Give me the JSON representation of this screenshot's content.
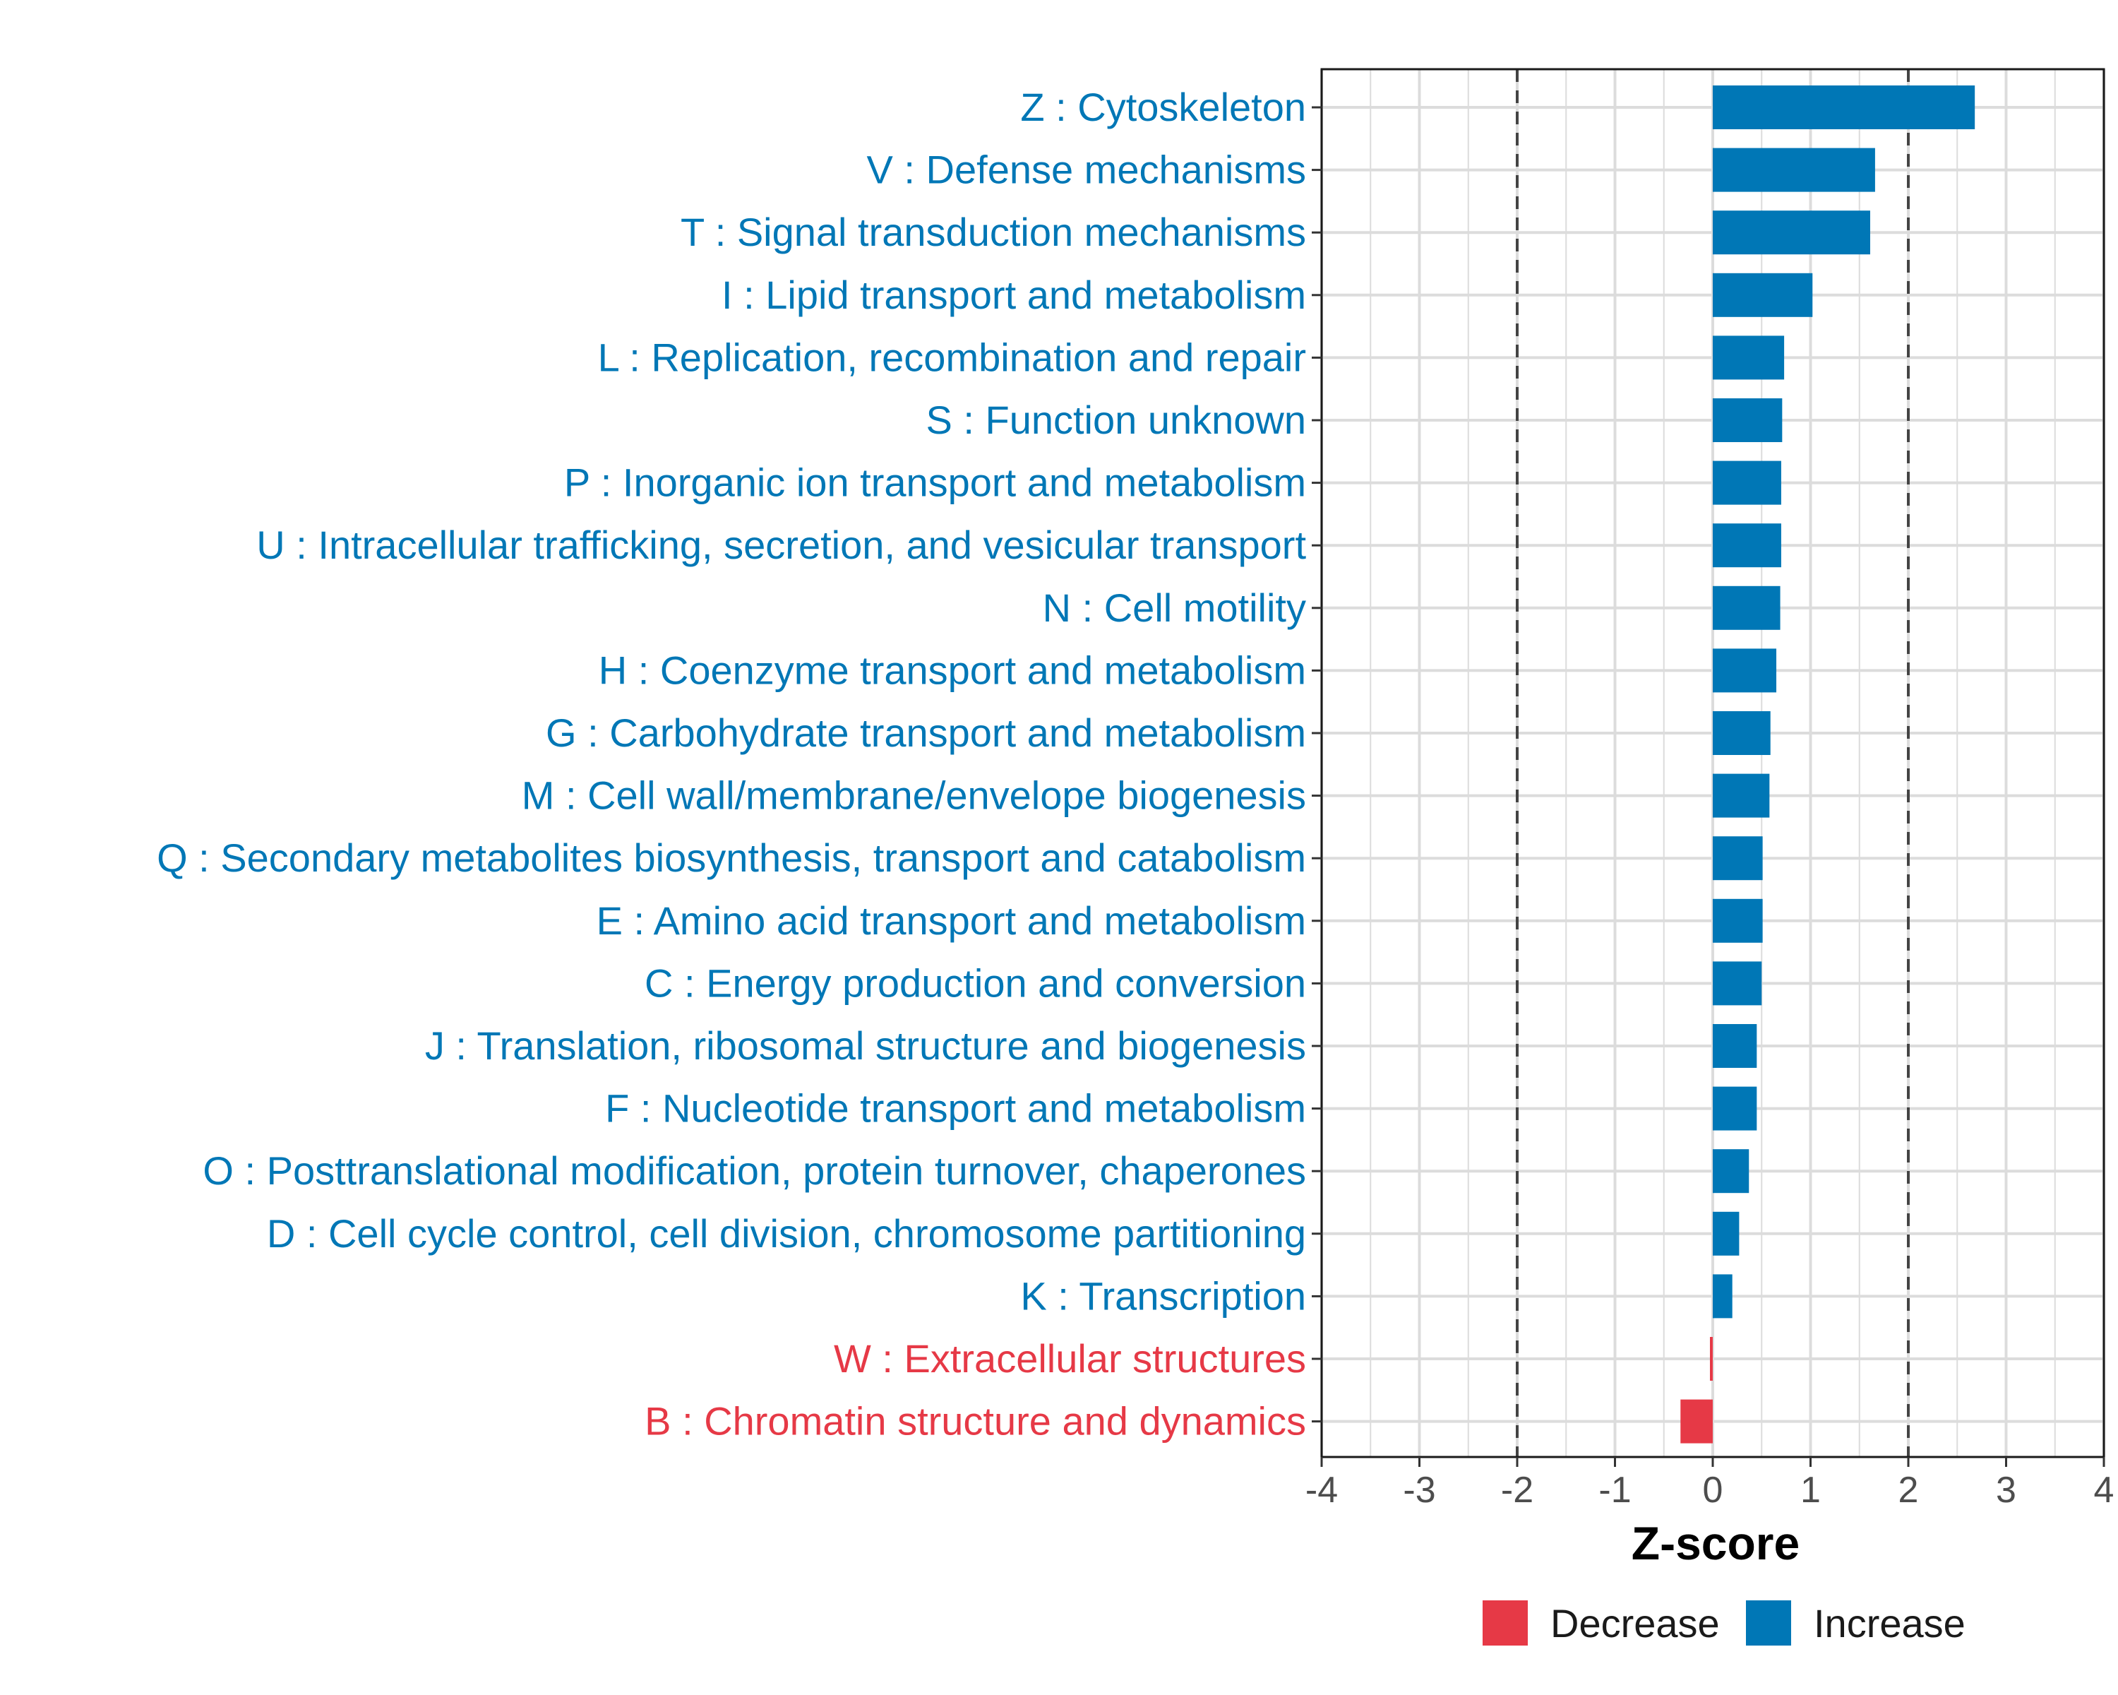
{
  "chart_data": {
    "type": "bar",
    "orientation": "horizontal",
    "title": "",
    "xlabel": "Z-score",
    "ylabel": "",
    "xlim": [
      -4,
      4
    ],
    "xticks": [
      -4,
      -3,
      -2,
      -1,
      0,
      1,
      2,
      3,
      4
    ],
    "xtick_labels": [
      "-4",
      "-3",
      "-2",
      "-1",
      "0",
      "1",
      "2",
      "3",
      "4"
    ],
    "reference_lines": [
      -2,
      2
    ],
    "grid": true,
    "legend_position": "bottom",
    "categories": [
      "Z : Cytoskeleton",
      "V : Defense mechanisms",
      "T : Signal transduction mechanisms",
      "I : Lipid transport and metabolism",
      "L : Replication, recombination and repair",
      "S : Function unknown",
      "P : Inorganic ion transport and metabolism",
      "U : Intracellular trafficking, secretion, and vesicular transport",
      "N : Cell motility",
      "H : Coenzyme transport and metabolism",
      "G : Carbohydrate transport and metabolism",
      "M : Cell wall/membrane/envelope biogenesis",
      "Q : Secondary metabolites biosynthesis, transport and catabolism",
      "E : Amino acid transport and metabolism",
      "C : Energy production and conversion",
      "J : Translation, ribosomal structure and biogenesis",
      "F : Nucleotide transport and metabolism",
      "O : Posttranslational modification, protein turnover, chaperones",
      "D : Cell cycle control, cell division, chromosome partitioning",
      "K : Transcription",
      "W : Extracellular structures",
      "B : Chromatin structure and dynamics"
    ],
    "values": [
      2.68,
      1.66,
      1.61,
      1.02,
      0.73,
      0.71,
      0.7,
      0.7,
      0.69,
      0.65,
      0.59,
      0.58,
      0.51,
      0.51,
      0.5,
      0.45,
      0.45,
      0.37,
      0.27,
      0.2,
      -0.02,
      -0.33
    ],
    "groups": [
      "Increase",
      "Increase",
      "Increase",
      "Increase",
      "Increase",
      "Increase",
      "Increase",
      "Increase",
      "Increase",
      "Increase",
      "Increase",
      "Increase",
      "Increase",
      "Increase",
      "Increase",
      "Increase",
      "Increase",
      "Increase",
      "Increase",
      "Increase",
      "Decrease",
      "Decrease"
    ],
    "legend": [
      {
        "name": "Decrease",
        "color": "#e63946"
      },
      {
        "name": "Increase",
        "color": "#0077b6"
      }
    ],
    "colors": {
      "Increase": "#0077b6",
      "Decrease": "#e63946"
    }
  }
}
